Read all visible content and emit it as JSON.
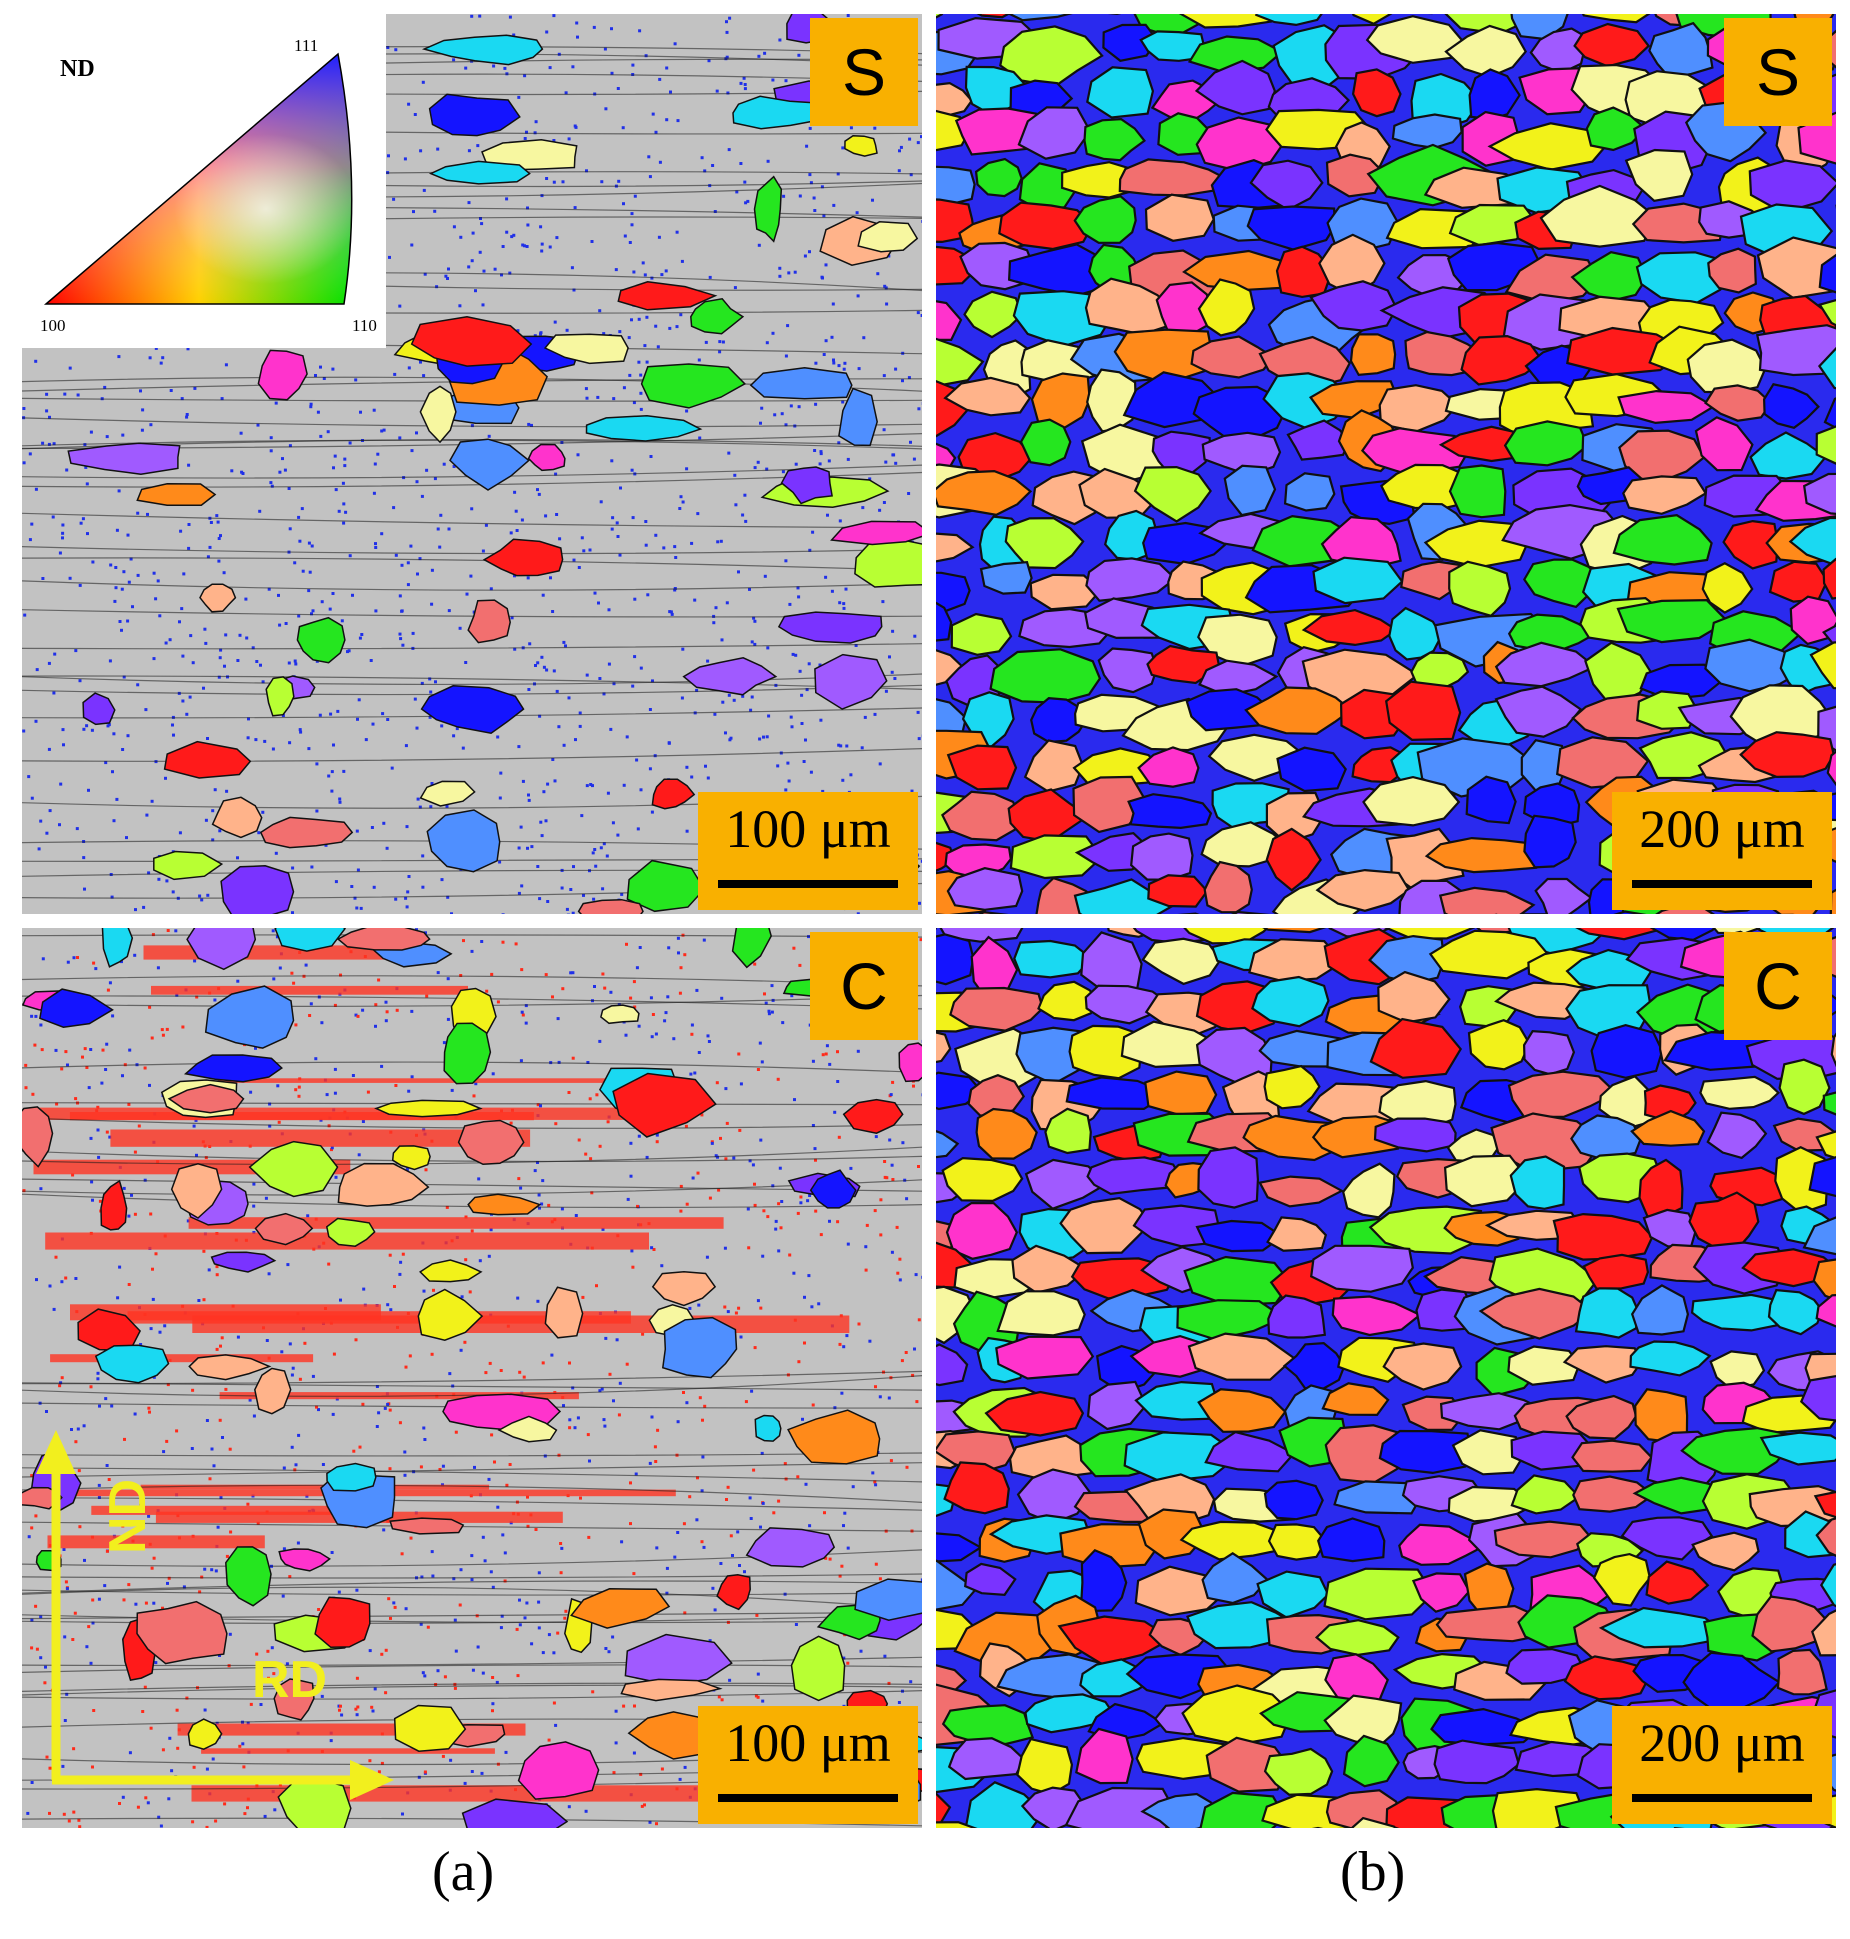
{
  "legend": {
    "nd": "ND",
    "corner_111": "111",
    "corner_100": "100",
    "corner_110": "110"
  },
  "panels": {
    "a_top": {
      "tag": "S",
      "scale": "100 μm"
    },
    "b_top": {
      "tag": "S",
      "scale": "200 μm"
    },
    "a_bottom": {
      "tag": "C",
      "scale": "100 μm"
    },
    "b_bottom": {
      "tag": "C",
      "scale": "200 μm"
    }
  },
  "axes": {
    "rd": "RD",
    "nd": "ND"
  },
  "captions": {
    "a": "(a)",
    "b": "(b)"
  },
  "colors": {
    "tag": "#f9b000",
    "background_gray": "#c2c2c2",
    "axes_arrows": "#f2ef1e",
    "ipf": [
      "#1414ff",
      "#ff1a1a",
      "#25e61f",
      "#ff8a1a",
      "#ff33cc",
      "#7a33ff",
      "#f2f21a",
      "#1ad9f2",
      "#f26f6f",
      "#4f8fff",
      "#ffb38a",
      "#b8ff33",
      "#a05aff",
      "#f7f7a0"
    ]
  }
}
